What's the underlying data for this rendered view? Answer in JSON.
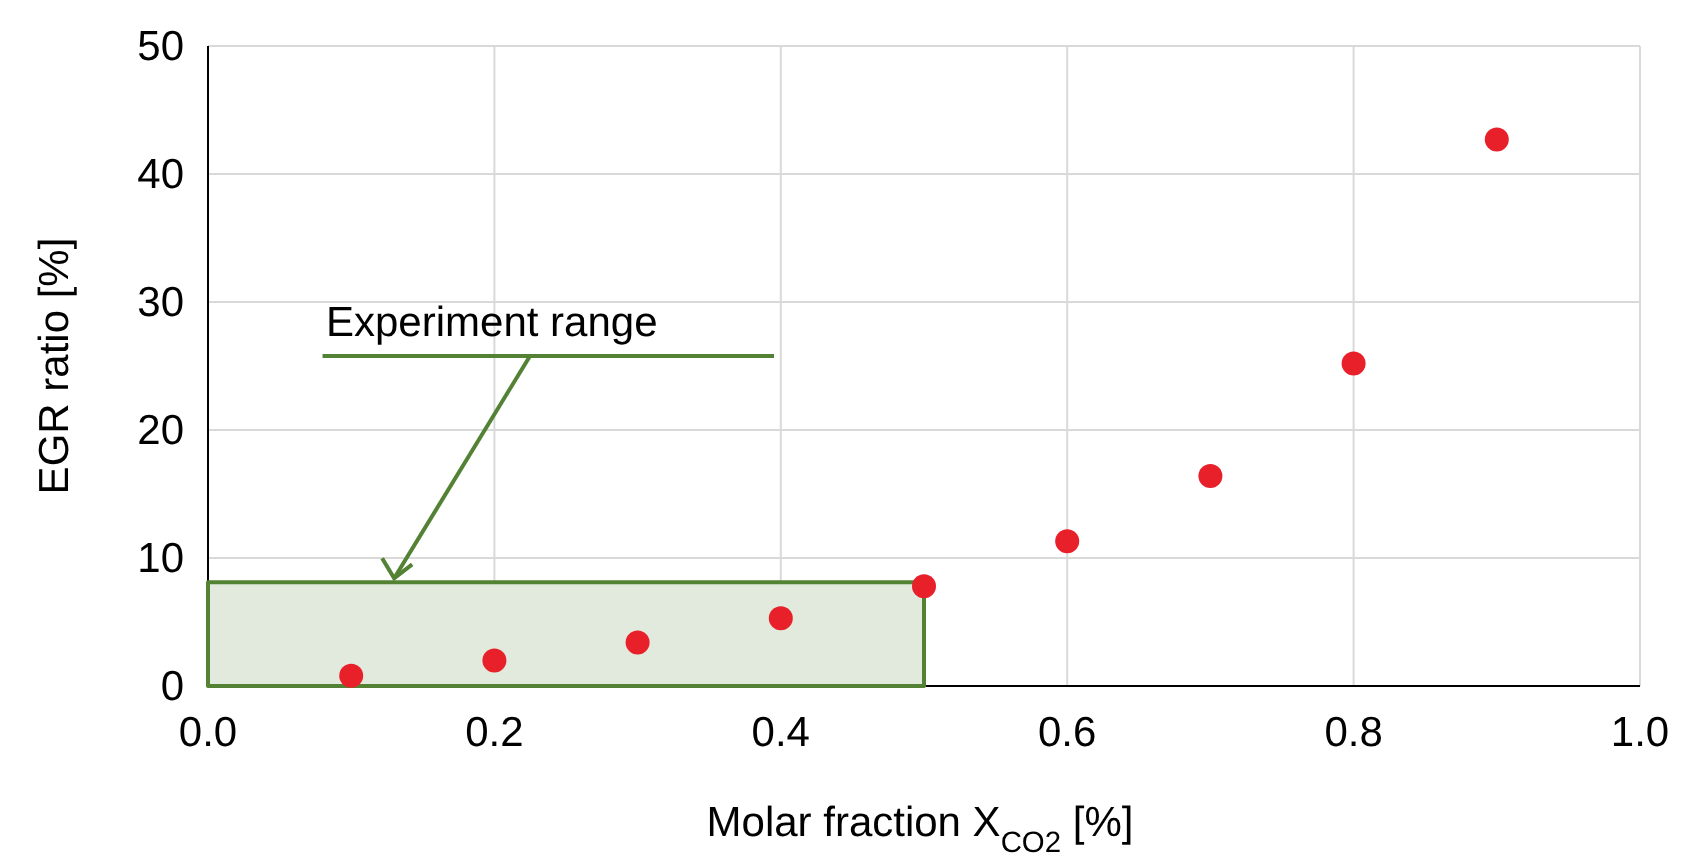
{
  "chart_data": {
    "type": "scatter",
    "xlabel": "Molar fraction X$_{CO2}$ [%]",
    "ylabel": "EGR ratio [%]",
    "x": [
      0.1,
      0.2,
      0.3,
      0.4,
      0.5,
      0.6,
      0.7,
      0.8,
      0.9
    ],
    "series": [
      {
        "type": "area",
        "color": "#548235",
        "x": [
          0,
          0.5
        ],
        "values": [
          8.1,
          8.1
        ]
      },
      {
        "color": "#e8202a",
        "marker": "circle",
        "values": [
          0.8,
          2.0,
          3.4,
          5.3,
          7.8,
          11.3,
          16.4,
          25.2,
          42.7
        ]
      }
    ],
    "annotations": [
      {
        "text": "Experiment range",
        "x": 0.13,
        "y": 8.1
      }
    ],
    "xlim": [
      0,
      1
    ],
    "xticks": [
      {
        "value": 0,
        "label": "0.0"
      },
      {
        "value": 0.2,
        "label": "0.2"
      },
      {
        "value": 0.4,
        "label": "0.4"
      },
      {
        "value": 0.6,
        "label": "0.6"
      },
      {
        "value": 0.8,
        "label": "0.8"
      },
      {
        "value": 1,
        "label": "1.0"
      }
    ],
    "ylim": [
      0,
      50
    ],
    "yticks": [
      0,
      10,
      20,
      30,
      40,
      50
    ],
    "grid": true
  }
}
